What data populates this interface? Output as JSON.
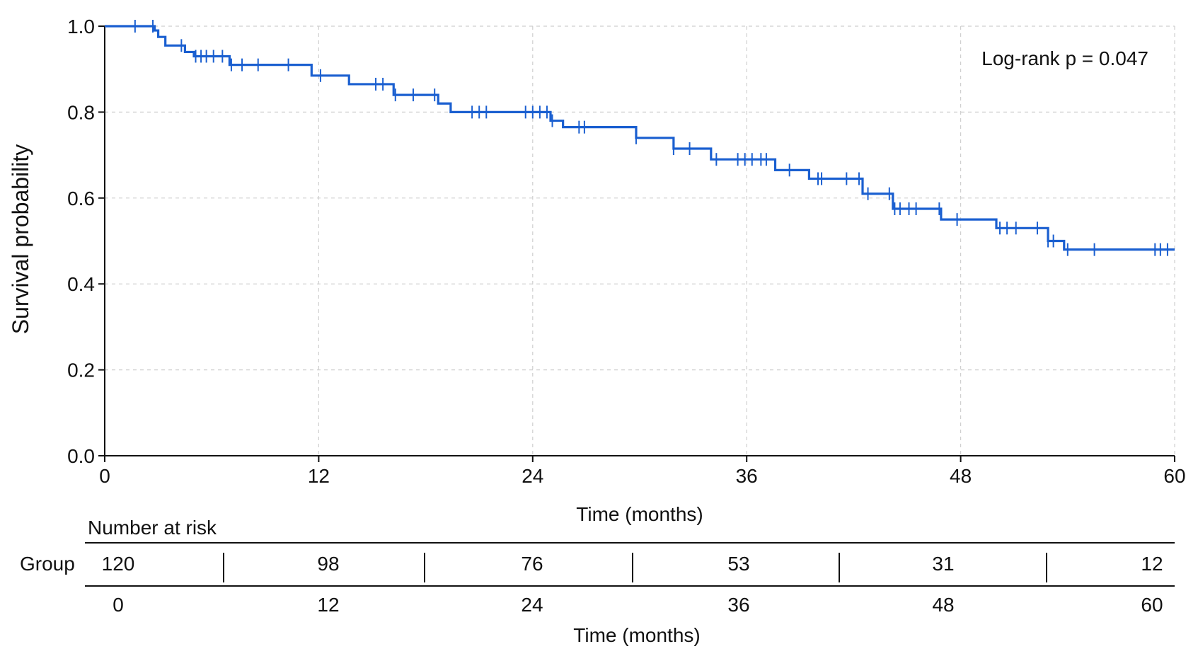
{
  "chart_data": {
    "type": "line",
    "subtype": "kaplan-meier step",
    "title": "",
    "xlabel": "Time (months)",
    "ylabel": "Survival probability",
    "xlim": [
      0,
      60
    ],
    "ylim": [
      0,
      1.0
    ],
    "x_ticks": [
      "0",
      "12",
      "24",
      "36",
      "48",
      "60"
    ],
    "y_ticks": [
      "0.0",
      "0.2",
      "0.4",
      "0.6",
      "0.8",
      "1.0"
    ],
    "grid": true,
    "annotation": "Log-rank p = 0.047",
    "series": [
      {
        "color": "#1a5fd0",
        "step_x": [
          0,
          2.8,
          3.0,
          3.4,
          4.5,
          5.0,
          7.0,
          11.6,
          13.7,
          16.2,
          18.7,
          19.4,
          25.0,
          25.7,
          29.8,
          31.9,
          34.0,
          37.6,
          39.5,
          42.5,
          44.2,
          46.9,
          50.0,
          52.9,
          53.8,
          60
        ],
        "step_y": [
          1.0,
          0.99,
          0.975,
          0.955,
          0.94,
          0.93,
          0.91,
          0.885,
          0.865,
          0.84,
          0.82,
          0.8,
          0.78,
          0.765,
          0.74,
          0.715,
          0.69,
          0.665,
          0.645,
          0.61,
          0.575,
          0.55,
          0.53,
          0.5,
          0.48,
          0.48
        ],
        "censored_x": [
          1.7,
          2.7,
          4.3,
          5.1,
          5.4,
          5.7,
          6.1,
          6.6,
          7.1,
          7.7,
          8.6,
          10.3,
          12.1,
          15.2,
          15.6,
          16.3,
          17.3,
          18.5,
          20.6,
          21.0,
          21.4,
          23.6,
          24.0,
          24.4,
          24.8,
          25.1,
          26.6,
          26.9,
          29.8,
          31.9,
          32.8,
          34.3,
          35.5,
          35.9,
          36.3,
          36.8,
          37.1,
          38.4,
          40.0,
          40.2,
          41.6,
          42.3,
          42.8,
          44.0,
          44.3,
          44.6,
          45.1,
          45.5,
          46.8,
          47.8,
          50.2,
          50.6,
          51.1,
          52.3,
          52.9,
          53.2,
          54.0,
          55.5,
          58.9,
          59.2,
          59.6
        ]
      }
    ]
  },
  "risk_table": {
    "title": "Number at risk",
    "row_label": "Group",
    "counts": [
      "120",
      "98",
      "76",
      "53",
      "31",
      "12"
    ],
    "times": [
      "0",
      "12",
      "24",
      "36",
      "48",
      "60"
    ],
    "xlabel": "Time (months)"
  }
}
